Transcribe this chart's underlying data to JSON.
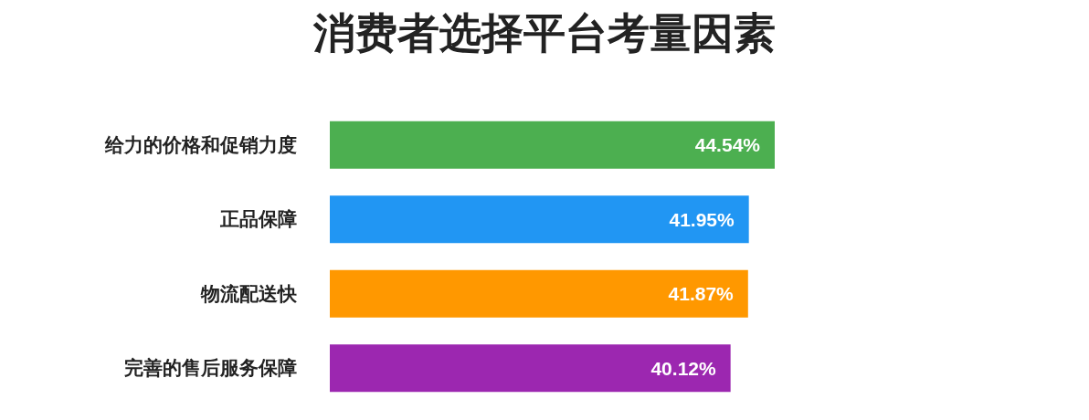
{
  "chart_data": {
    "type": "bar",
    "orientation": "horizontal",
    "title": "消费者选择平台考量因素",
    "categories": [
      "给力的价格和促销力度",
      "正品保障",
      "物流配送快",
      "完善的售后服务保障"
    ],
    "values": [
      44.54,
      41.95,
      41.87,
      40.12
    ],
    "value_labels": [
      "44.54%",
      "41.95%",
      "41.87%",
      "40.12%"
    ],
    "colors": [
      "#4caf50",
      "#2196f3",
      "#ff9800",
      "#9c27b0"
    ]
  }
}
